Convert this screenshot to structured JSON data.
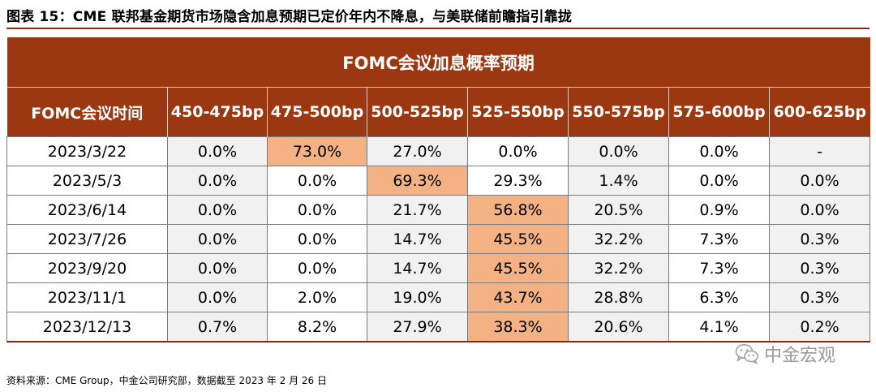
{
  "figure": {
    "title": "图表 15：CME 联邦基金期货市场隐含加息预期已定价年内不降息，与美联储前瞻指引靠拢"
  },
  "table": {
    "banner": "FOMC会议加息概率预期",
    "headers": [
      "FOMC会议时间",
      "450-475bp",
      "475-500bp",
      "500-525bp",
      "525-550bp",
      "550-575bp",
      "575-600bp",
      "600-625bp"
    ],
    "rows": [
      {
        "date": "2023/3/22",
        "values": [
          "0.0%",
          "73.0%",
          "27.0%",
          "0.0%",
          "0.0%",
          "0.0%",
          "-"
        ],
        "peak_col": 1
      },
      {
        "date": "2023/5/3",
        "values": [
          "0.0%",
          "0.0%",
          "69.3%",
          "29.3%",
          "1.4%",
          "0.0%",
          "0.0%"
        ],
        "peak_col": 2
      },
      {
        "date": "2023/6/14",
        "values": [
          "0.0%",
          "0.0%",
          "21.7%",
          "56.8%",
          "20.5%",
          "0.9%",
          "0.0%"
        ],
        "peak_col": 3
      },
      {
        "date": "2023/7/26",
        "values": [
          "0.0%",
          "0.0%",
          "14.7%",
          "45.5%",
          "32.2%",
          "7.3%",
          "0.3%"
        ],
        "peak_col": 3
      },
      {
        "date": "2023/9/20",
        "values": [
          "0.0%",
          "0.0%",
          "14.7%",
          "45.5%",
          "32.2%",
          "7.3%",
          "0.3%"
        ],
        "peak_col": 3
      },
      {
        "date": "2023/11/1",
        "values": [
          "0.0%",
          "2.0%",
          "19.0%",
          "43.7%",
          "28.8%",
          "6.3%",
          "0.3%"
        ],
        "peak_col": 3
      },
      {
        "date": "2023/12/13",
        "values": [
          "0.7%",
          "8.2%",
          "27.9%",
          "38.3%",
          "20.6%",
          "4.1%",
          "0.2%"
        ],
        "peak_col": 3
      }
    ]
  },
  "colors": {
    "header_bg": "#9b3812",
    "peak_highlight": "#f4b183",
    "alt_column_bg": "#f1f1f1"
  },
  "footer": {
    "source": "资料来源：CME Group，中金公司研究部，数据截至 2023 年 2 月 26 日"
  },
  "watermark": {
    "text": "中金宏观",
    "icon": "wechat-icon"
  }
}
